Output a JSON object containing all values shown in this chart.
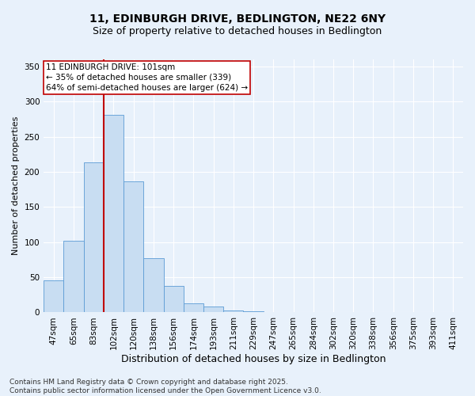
{
  "title_line1": "11, EDINBURGH DRIVE, BEDLINGTON, NE22 6NY",
  "title_line2": "Size of property relative to detached houses in Bedlington",
  "xlabel": "Distribution of detached houses by size in Bedlington",
  "ylabel": "Number of detached properties",
  "categories": [
    "47sqm",
    "65sqm",
    "83sqm",
    "102sqm",
    "120sqm",
    "138sqm",
    "156sqm",
    "174sqm",
    "193sqm",
    "211sqm",
    "229sqm",
    "247sqm",
    "265sqm",
    "284sqm",
    "302sqm",
    "320sqm",
    "338sqm",
    "356sqm",
    "375sqm",
    "393sqm",
    "411sqm"
  ],
  "values": [
    46,
    102,
    214,
    281,
    187,
    77,
    38,
    13,
    8,
    3,
    2,
    1,
    0,
    0,
    0,
    0,
    0,
    0,
    1,
    0,
    0
  ],
  "bar_color": "#c8ddf2",
  "bar_edge_color": "#5b9bd5",
  "ylim": [
    0,
    360
  ],
  "yticks": [
    0,
    50,
    100,
    150,
    200,
    250,
    300,
    350
  ],
  "annotation_line1": "11 EDINBURGH DRIVE: 101sqm",
  "annotation_line2": "← 35% of detached houses are smaller (339)",
  "annotation_line3": "64% of semi-detached houses are larger (624) →",
  "vline_bin_index": 2.5,
  "vline_color": "#c00000",
  "box_edge_color": "#c00000",
  "footnote": "Contains HM Land Registry data © Crown copyright and database right 2025.\nContains public sector information licensed under the Open Government Licence v3.0.",
  "bg_color": "#e8f1fb",
  "plot_bg_color": "#e8f1fb",
  "grid_color": "#ffffff",
  "title_fontsize": 10,
  "subtitle_fontsize": 9,
  "ylabel_fontsize": 8,
  "xlabel_fontsize": 9,
  "tick_fontsize": 7.5,
  "annotation_fontsize": 7.5,
  "footnote_fontsize": 6.5
}
